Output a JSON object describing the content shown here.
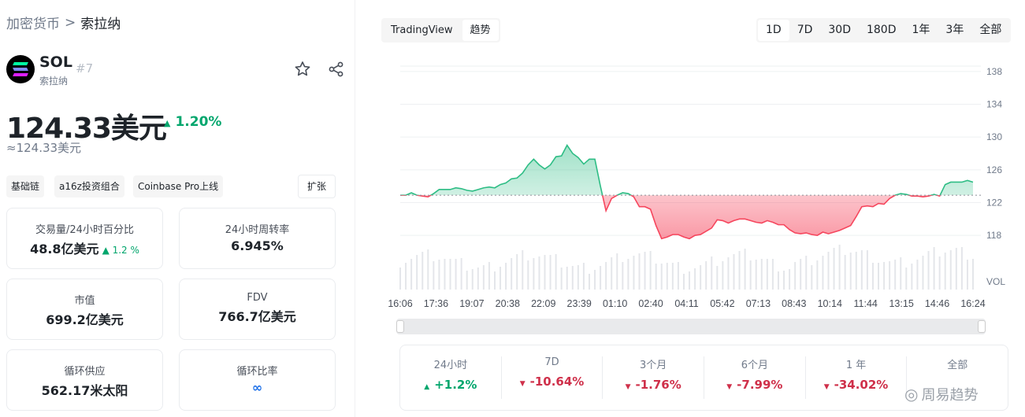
{
  "breadcrumb": {
    "root": "加密货币",
    "sep": ">",
    "current": "索拉纳"
  },
  "coin": {
    "symbol": "SOL",
    "rank": "#7",
    "name": "索拉纳",
    "price": "124.33美元",
    "change": "1.20%",
    "change_arrow": "▲",
    "approx": "≈124.33美元"
  },
  "tags": [
    "基础链",
    "a16z投资组合",
    "Coinbase Pro上线"
  ],
  "expand_label": "扩张",
  "stats": [
    {
      "label": "交易量/24小时百分比",
      "value": "48.8亿美元",
      "sub": "▲ 1.2 %"
    },
    {
      "label": "24小时周转率",
      "value": "6.945%"
    },
    {
      "label": "市值",
      "value": "699.2亿美元"
    },
    {
      "label": "FDV",
      "value": "766.7亿美元"
    },
    {
      "label": "循环供应",
      "value": "562.17米太阳"
    },
    {
      "label": "循环比率",
      "value": "∞"
    }
  ],
  "chart_toggle": [
    "TradingView",
    "趋势"
  ],
  "ranges": [
    "1D",
    "7D",
    "30D",
    "180D",
    "1年",
    "3年",
    "全部"
  ],
  "active_range": "1D",
  "chart_data": {
    "type": "line",
    "x_ticks": [
      "16:06",
      "17:36",
      "19:07",
      "20:38",
      "22:09",
      "23:39",
      "01:10",
      "02:40",
      "04:11",
      "05:42",
      "07:13",
      "08:43",
      "10:14",
      "11:44",
      "13:15",
      "14:46",
      "16:24"
    ],
    "y_ticks": [
      138,
      134,
      130,
      126,
      122,
      118
    ],
    "ylim": [
      116,
      140
    ],
    "baseline": 122.9,
    "vol_label": "VOL",
    "values": [
      122.9,
      122.9,
      123.2,
      122.9,
      122.8,
      122.7,
      123.1,
      123.6,
      123.6,
      123.6,
      123.8,
      123.7,
      123.5,
      123.4,
      123.6,
      123.8,
      123.9,
      123.8,
      124.2,
      124.4,
      124.9,
      125.0,
      125.6,
      126.6,
      127.3,
      126.6,
      126.1,
      126.6,
      127.6,
      127.7,
      129.0,
      128.0,
      127.5,
      126.7,
      127.3,
      127.3,
      124.0,
      121.0,
      122.5,
      122.9,
      123.2,
      123.1,
      122.7,
      121.5,
      121.5,
      121.2,
      119.2,
      117.6,
      117.8,
      118.1,
      118.1,
      117.8,
      117.6,
      118.0,
      118.1,
      118.5,
      118.9,
      119.9,
      119.8,
      119.5,
      119.8,
      120.0,
      120.0,
      119.8,
      119.6,
      119.5,
      119.8,
      119.6,
      119.3,
      119.3,
      118.7,
      118.3,
      118.2,
      118.3,
      118.1,
      118.0,
      118.4,
      118.2,
      118.4,
      118.6,
      118.9,
      119.2,
      120.3,
      121.5,
      121.6,
      121.5,
      121.9,
      121.8,
      122.5,
      122.9,
      123.1,
      123.0,
      122.8,
      122.8,
      122.7,
      122.8,
      123.0,
      122.8,
      124.2,
      124.5,
      124.5,
      124.5,
      124.7,
      124.5
    ]
  },
  "performance": [
    {
      "label": "24小时",
      "value": "+1.2%",
      "dir": "up"
    },
    {
      "label": "7D",
      "value": "-10.64%",
      "dir": "dn"
    },
    {
      "label": "3个月",
      "value": "-1.76%",
      "dir": "dn"
    },
    {
      "label": "6个月",
      "value": "-7.99%",
      "dir": "dn"
    },
    {
      "label": "1 年",
      "value": "-34.02%",
      "dir": "dn"
    },
    {
      "label": "全部",
      "value": "",
      "dir": ""
    }
  ],
  "watermark": "周易趋势",
  "colors": {
    "up": "#03a66d",
    "down": "#cf304a",
    "line_up": "#2ebd85",
    "line_down": "#f6465d",
    "accent": "#fcd535"
  }
}
